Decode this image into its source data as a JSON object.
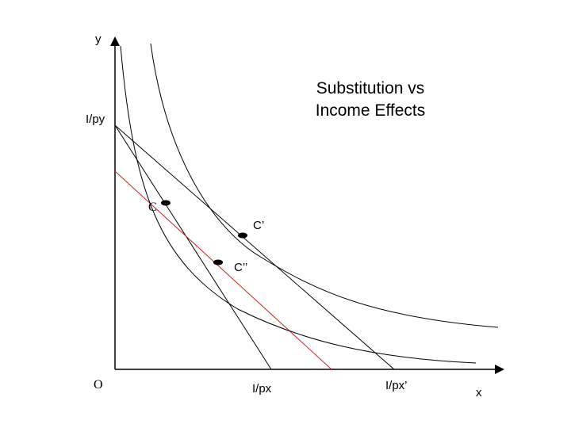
{
  "title": {
    "line1": "Substitution vs",
    "line2": "Income Effects"
  },
  "labels": {
    "y_axis": "y",
    "x_axis": "x",
    "origin": "O",
    "income_over_py": "I/py",
    "income_over_px": "I/px",
    "income_over_px_prime": "I/px’",
    "point_c": "C",
    "point_c_prime": "C’",
    "point_c_double_prime": "C’’"
  },
  "colors": {
    "axes": "#000000",
    "curves": "#000000",
    "compensated_budget_line": "#cc2222",
    "points": "#000000"
  }
}
